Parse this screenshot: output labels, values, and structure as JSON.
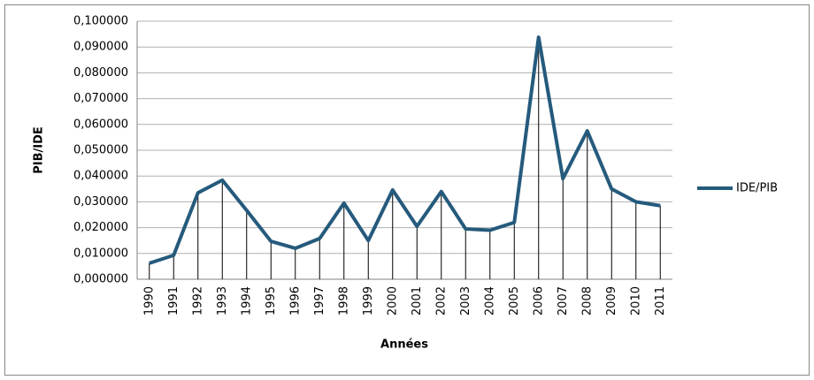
{
  "chart_data": {
    "type": "line",
    "y_label": "PIB/IDE",
    "x_label": "Années",
    "categories": [
      "1990",
      "1991",
      "1992",
      "1993",
      "1994",
      "1995",
      "1996",
      "1997",
      "1998",
      "1999",
      "2000",
      "2001",
      "2002",
      "2003",
      "2004",
      "2005",
      "2006",
      "2007",
      "2008",
      "2009",
      "2010",
      "2011"
    ],
    "series": [
      {
        "name": "IDE/PIB",
        "color": "#255a7c",
        "values": [
          0.0062,
          0.0093,
          0.0335,
          0.0384,
          0.0267,
          0.0147,
          0.012,
          0.0158,
          0.0295,
          0.015,
          0.0346,
          0.0205,
          0.034,
          0.0195,
          0.019,
          0.022,
          0.0938,
          0.039,
          0.0575,
          0.035,
          0.03,
          0.0285
        ]
      }
    ],
    "ylim": [
      0,
      0.1
    ],
    "yticks": [
      {
        "value": 0,
        "label": "0,000000"
      },
      {
        "value": 0.01,
        "label": "0,010000"
      },
      {
        "value": 0.02,
        "label": "0,020000"
      },
      {
        "value": 0.03,
        "label": "0,030000"
      },
      {
        "value": 0.04,
        "label": "0,040000"
      },
      {
        "value": 0.05,
        "label": "0,050000"
      },
      {
        "value": 0.06,
        "label": "0,060000"
      },
      {
        "value": 0.07,
        "label": "0,070000"
      },
      {
        "value": 0.08,
        "label": "0,080000"
      },
      {
        "value": 0.09,
        "label": "0,090000"
      },
      {
        "value": 0.1,
        "label": "0,100000"
      }
    ],
    "grid": true,
    "drop_lines": true,
    "legend": "right"
  }
}
